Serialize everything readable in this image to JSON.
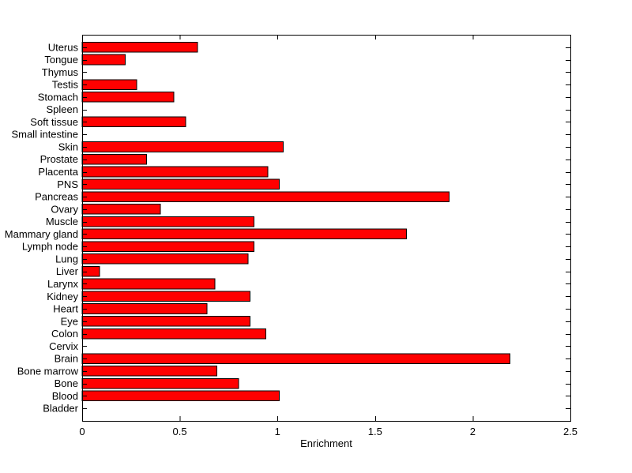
{
  "figure": {
    "background": "#ffffff",
    "title": ""
  },
  "chart_data": {
    "type": "bar",
    "orientation": "horizontal",
    "title": "",
    "xlabel": "Enrichment",
    "ylabel": "",
    "xlim": [
      0,
      2.5
    ],
    "xticks": [
      0,
      0.5,
      1,
      1.5,
      2,
      2.5
    ],
    "xtick_labels": [
      "0",
      "0.5",
      "1",
      "1.5",
      "2",
      "2.5"
    ],
    "grid": false,
    "legend": null,
    "bar_color": "#FF0000",
    "bar_edge_color": "#000000",
    "axis_color": "#000000",
    "text_color": "#000000",
    "categories": [
      "Uterus",
      "Tongue",
      "Thymus",
      "Testis",
      "Stomach",
      "Spleen",
      "Soft tissue",
      "Small intestine",
      "Skin",
      "Prostate",
      "Placenta",
      "PNS",
      "Pancreas",
      "Ovary",
      "Muscle",
      "Mammary gland",
      "Lymph node",
      "Lung",
      "Liver",
      "Larynx",
      "Kidney",
      "Heart",
      "Eye",
      "Colon",
      "Cervix",
      "Brain",
      "Bone marrow",
      "Bone",
      "Blood",
      "Bladder"
    ],
    "values": [
      0.59,
      0.22,
      0,
      0.28,
      0.47,
      0,
      0.53,
      0,
      1.03,
      0.33,
      0.95,
      1.01,
      1.88,
      0.4,
      0.88,
      1.66,
      0.88,
      0.85,
      0.09,
      0.68,
      0.86,
      0.64,
      0.86,
      0.94,
      0,
      2.19,
      0.69,
      0.8,
      1.01,
      0
    ]
  }
}
